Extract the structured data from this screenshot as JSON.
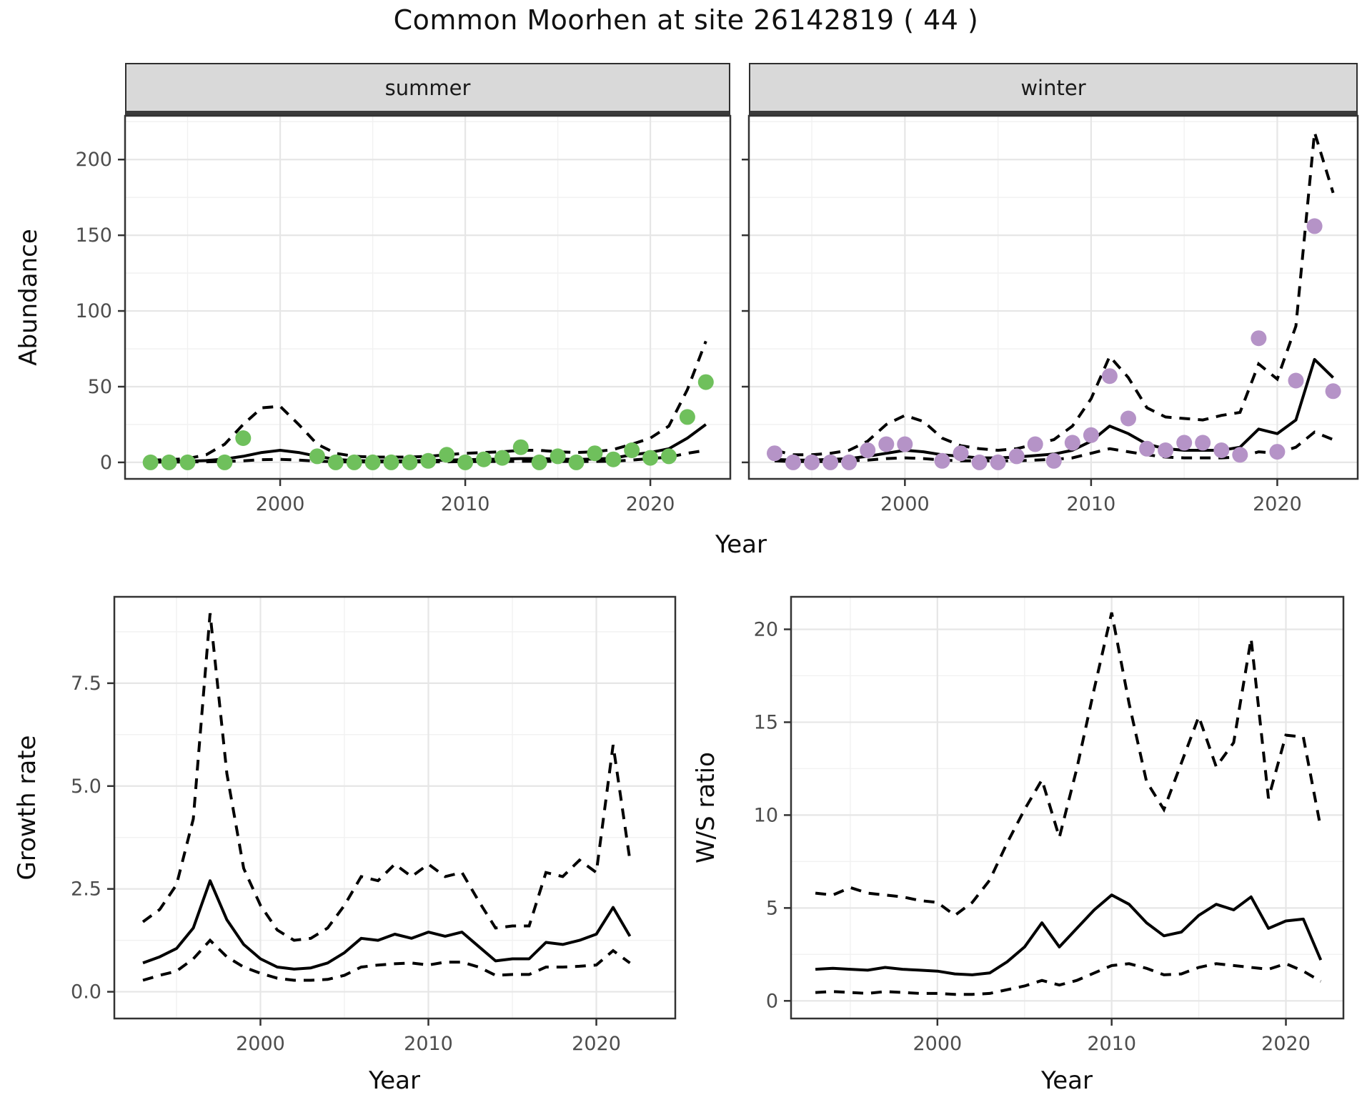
{
  "title": "Common Moorhen at site 26142819 ( 44 )",
  "axis_titles": {
    "abundance": "Abundance",
    "year_top": "Year",
    "growth": "Growth rate",
    "ws": "W/S ratio",
    "year_growth": "Year",
    "year_ws": "Year"
  },
  "colors": {
    "summer_point": "#6fc05c",
    "winter_point": "#b593c7",
    "fit_line": "#000000",
    "ci_line": "#000000",
    "strip_bg": "#d9d9d9",
    "grid_major": "#e6e6e6",
    "grid_minor": "#f1f1f1",
    "panel_border": "#333333",
    "tick_text": "#4d4d4d"
  },
  "chart_data": [
    {
      "id": "abundance-summer",
      "type": "scatter",
      "facet_label": "summer",
      "title": "Common Moorhen abundance, summer",
      "xlabel": "Year",
      "ylabel": "Abundance",
      "xlim": [
        1991.62,
        2024.32
      ],
      "ylim": [
        -10.9,
        228.9
      ],
      "x_ticks": [
        2000,
        2010,
        2020
      ],
      "x_tick_labels": [
        "2000",
        "2010",
        "2020"
      ],
      "x_minor": [
        1995,
        2005,
        2015
      ],
      "y_ticks": [
        0,
        50,
        100,
        150,
        200
      ],
      "y_tick_labels": [
        "0",
        "50",
        "100",
        "150",
        "200"
      ],
      "y_minor": [
        25,
        75,
        125,
        175,
        225
      ],
      "point_color": "#6fc05c",
      "points": {
        "years": [
          1993,
          1994,
          1995,
          1997,
          1998,
          2002,
          2003,
          2004,
          2005,
          2006,
          2007,
          2008,
          2009,
          2010,
          2011,
          2012,
          2013,
          2014,
          2015,
          2016,
          2017,
          2018,
          2019,
          2020,
          2021,
          2022,
          2023
        ],
        "values": [
          0,
          0,
          0,
          0,
          16,
          4,
          0,
          0,
          0,
          0,
          0,
          1,
          5,
          0,
          2,
          3,
          10,
          0,
          4,
          0,
          6,
          2,
          8,
          3,
          4,
          30,
          53
        ]
      },
      "fit": {
        "years": [
          1993,
          1994,
          1995,
          1996,
          1997,
          1998,
          1999,
          2000,
          2001,
          2002,
          2003,
          2004,
          2005,
          2006,
          2007,
          2008,
          2009,
          2010,
          2011,
          2012,
          2013,
          2014,
          2015,
          2016,
          2017,
          2018,
          2019,
          2020,
          2021,
          2022,
          2023
        ],
        "values": [
          0.5,
          0.6,
          0.8,
          1.2,
          2.2,
          4,
          6.5,
          8,
          6.5,
          4,
          2,
          1.2,
          1,
          1,
          1,
          1.2,
          1.5,
          1.8,
          2,
          2.2,
          2.5,
          2.5,
          2.2,
          2,
          2.2,
          2.8,
          5,
          6.5,
          9,
          16,
          25
        ]
      },
      "upper": {
        "years": [
          1993,
          1994,
          1995,
          1996,
          1997,
          1998,
          1999,
          2000,
          2001,
          2002,
          2003,
          2004,
          2005,
          2006,
          2007,
          2008,
          2009,
          2010,
          2011,
          2012,
          2013,
          2014,
          2015,
          2016,
          2017,
          2018,
          2019,
          2020,
          2021,
          2022,
          2023
        ],
        "values": [
          1.5,
          1.8,
          2.5,
          5,
          12,
          25,
          36,
          37,
          25,
          12,
          6,
          4,
          3.5,
          3.5,
          3.5,
          4,
          5,
          6,
          6.5,
          7,
          8,
          8,
          7,
          6.5,
          7,
          8.5,
          12,
          16,
          24,
          48,
          80
        ]
      },
      "lower": {
        "years": [
          1993,
          1994,
          1995,
          1996,
          1997,
          1998,
          1999,
          2000,
          2001,
          2002,
          2003,
          2004,
          2005,
          2006,
          2007,
          2008,
          2009,
          2010,
          2011,
          2012,
          2013,
          2014,
          2015,
          2016,
          2017,
          2018,
          2019,
          2020,
          2021,
          2022,
          2023
        ],
        "values": [
          0.2,
          0.2,
          0.3,
          0.4,
          0.6,
          1,
          1.8,
          2,
          1.5,
          0.8,
          0.4,
          0.3,
          0.3,
          0.3,
          0.3,
          0.35,
          0.4,
          0.5,
          0.55,
          0.6,
          0.7,
          0.7,
          0.6,
          0.55,
          0.6,
          0.8,
          1.5,
          2.5,
          3.5,
          6,
          8
        ]
      }
    },
    {
      "id": "abundance-winter",
      "type": "scatter",
      "facet_label": "winter",
      "title": "Common Moorhen abundance, winter",
      "xlabel": "Year",
      "ylabel": "Abundance",
      "xlim": [
        1991.62,
        2024.32
      ],
      "ylim": [
        -10.9,
        228.9
      ],
      "x_ticks": [
        2000,
        2010,
        2020
      ],
      "x_tick_labels": [
        "2000",
        "2010",
        "2020"
      ],
      "x_minor": [
        1995,
        2005,
        2015
      ],
      "y_ticks": [
        0,
        50,
        100,
        150,
        200
      ],
      "y_tick_labels": [
        "0",
        "50",
        "100",
        "150",
        "200"
      ],
      "y_minor": [
        25,
        75,
        125,
        175,
        225
      ],
      "point_color": "#b593c7",
      "points": {
        "years": [
          1993,
          1994,
          1995,
          1996,
          1997,
          1998,
          1999,
          2000,
          2002,
          2003,
          2004,
          2005,
          2006,
          2007,
          2008,
          2009,
          2010,
          2011,
          2012,
          2013,
          2014,
          2015,
          2016,
          2017,
          2018,
          2019,
          2020,
          2021,
          2022,
          2023
        ],
        "values": [
          6,
          0,
          0,
          0,
          0,
          8,
          12,
          12,
          1,
          6,
          0,
          0,
          4,
          12,
          1,
          13,
          18,
          57,
          29,
          9,
          8,
          13,
          13,
          8,
          5,
          82,
          7,
          54,
          156,
          47
        ]
      },
      "fit": {
        "years": [
          1993,
          1994,
          1995,
          1996,
          1997,
          1998,
          1999,
          2000,
          2001,
          2002,
          2003,
          2004,
          2005,
          2006,
          2007,
          2008,
          2009,
          2010,
          2011,
          2012,
          2013,
          2014,
          2015,
          2016,
          2017,
          2018,
          2019,
          2020,
          2021,
          2022,
          2023
        ],
        "values": [
          2,
          1.5,
          1.5,
          2,
          2.5,
          4,
          6,
          8,
          7,
          5,
          4,
          3,
          3,
          3.5,
          4.5,
          5.5,
          8,
          14,
          24,
          19,
          12,
          9,
          8,
          8,
          8,
          10,
          22,
          19,
          28,
          68,
          56
        ]
      },
      "upper": {
        "years": [
          1993,
          1994,
          1995,
          1996,
          1997,
          1998,
          1999,
          2000,
          2001,
          2002,
          2003,
          2004,
          2005,
          2006,
          2007,
          2008,
          2009,
          2010,
          2011,
          2012,
          2013,
          2014,
          2015,
          2016,
          2017,
          2018,
          2019,
          2020,
          2021,
          2022,
          2023
        ],
        "values": [
          8,
          5,
          5,
          6,
          8,
          14,
          25,
          31,
          27,
          16,
          11,
          9,
          8,
          9,
          12,
          15,
          24,
          42,
          70,
          56,
          36,
          30,
          29,
          28,
          31,
          33,
          65,
          55,
          90,
          218,
          178
        ]
      },
      "lower": {
        "years": [
          1993,
          1994,
          1995,
          1996,
          1997,
          1998,
          1999,
          2000,
          2001,
          2002,
          2003,
          2004,
          2005,
          2006,
          2007,
          2008,
          2009,
          2010,
          2011,
          2012,
          2013,
          2014,
          2015,
          2016,
          2017,
          2018,
          2019,
          2020,
          2021,
          2022,
          2023
        ],
        "values": [
          1,
          0.5,
          0.5,
          0.5,
          1,
          1.5,
          2.5,
          3,
          2.5,
          1.5,
          1,
          1,
          1,
          1,
          1.5,
          2,
          3,
          6,
          9,
          7,
          5,
          3.5,
          3,
          3,
          3,
          3.5,
          7,
          6,
          10,
          20,
          15
        ]
      }
    },
    {
      "id": "growth-rate",
      "type": "line",
      "facet_label": "",
      "title": "Growth rate",
      "xlabel": "Year",
      "ylabel": "Growth rate",
      "xlim": [
        1991.3,
        2024.7
      ],
      "ylim": [
        -0.65,
        9.6
      ],
      "x_ticks": [
        2000,
        2010,
        2020
      ],
      "x_tick_labels": [
        "2000",
        "2010",
        "2020"
      ],
      "x_minor": [
        1995,
        2005,
        2015
      ],
      "y_ticks": [
        0,
        2.5,
        5,
        7.5
      ],
      "y_tick_labels": [
        "0.0",
        "2.5",
        "5.0",
        "7.5"
      ],
      "y_minor": [
        1.25,
        3.75,
        6.25,
        8.75
      ],
      "point_color": "",
      "points": {
        "years": [],
        "values": []
      },
      "fit": {
        "years": [
          1993,
          1994,
          1995,
          1996,
          1997,
          1998,
          1999,
          2000,
          2001,
          2002,
          2003,
          2004,
          2005,
          2006,
          2007,
          2008,
          2009,
          2010,
          2011,
          2012,
          2013,
          2014,
          2015,
          2016,
          2017,
          2018,
          2019,
          2020,
          2021,
          2022
        ],
        "values": [
          0.7,
          0.85,
          1.05,
          1.55,
          2.7,
          1.75,
          1.15,
          0.8,
          0.6,
          0.55,
          0.58,
          0.7,
          0.95,
          1.3,
          1.25,
          1.4,
          1.3,
          1.45,
          1.35,
          1.45,
          1.1,
          0.75,
          0.8,
          0.8,
          1.2,
          1.15,
          1.25,
          1.4,
          2.05,
          1.35
        ]
      },
      "upper": {
        "years": [
          1993,
          1994,
          1995,
          1996,
          1997,
          1998,
          1999,
          2000,
          2001,
          2002,
          2003,
          2004,
          2005,
          2006,
          2007,
          2008,
          2009,
          2010,
          2011,
          2012,
          2013,
          2014,
          2015,
          2016,
          2017,
          2018,
          2019,
          2020,
          2021,
          2022
        ],
        "values": [
          1.7,
          2.0,
          2.6,
          4.2,
          9.2,
          5.3,
          3.0,
          2.1,
          1.5,
          1.25,
          1.3,
          1.55,
          2.1,
          2.8,
          2.7,
          3.1,
          2.8,
          3.1,
          2.8,
          2.9,
          2.2,
          1.55,
          1.6,
          1.6,
          2.9,
          2.8,
          3.2,
          2.9,
          6.0,
          3.2
        ]
      },
      "lower": {
        "years": [
          1993,
          1994,
          1995,
          1996,
          1997,
          1998,
          1999,
          2000,
          2001,
          2002,
          2003,
          2004,
          2005,
          2006,
          2007,
          2008,
          2009,
          2010,
          2011,
          2012,
          2013,
          2014,
          2015,
          2016,
          2017,
          2018,
          2019,
          2020,
          2021,
          2022
        ],
        "values": [
          0.28,
          0.4,
          0.5,
          0.8,
          1.25,
          0.85,
          0.6,
          0.45,
          0.33,
          0.28,
          0.28,
          0.3,
          0.4,
          0.6,
          0.65,
          0.68,
          0.7,
          0.65,
          0.72,
          0.72,
          0.6,
          0.4,
          0.42,
          0.42,
          0.6,
          0.6,
          0.62,
          0.65,
          1.0,
          0.7
        ]
      }
    },
    {
      "id": "ws-ratio",
      "type": "line",
      "facet_label": "",
      "title": "Winter/Summer ratio",
      "xlabel": "Year",
      "ylabel": "W/S ratio",
      "xlim": [
        1991.6,
        2023.3
      ],
      "ylim": [
        -0.95,
        21.75
      ],
      "x_ticks": [
        2000,
        2010,
        2020
      ],
      "x_tick_labels": [
        "2000",
        "2010",
        "2020"
      ],
      "x_minor": [
        1995,
        2005,
        2015
      ],
      "y_ticks": [
        0,
        5,
        10,
        15,
        20
      ],
      "y_tick_labels": [
        "0",
        "5",
        "10",
        "15",
        "20"
      ],
      "y_minor": [
        2.5,
        7.5,
        12.5,
        17.5
      ],
      "point_color": "",
      "points": {
        "years": [],
        "values": []
      },
      "fit": {
        "years": [
          1993,
          1994,
          1995,
          1996,
          1997,
          1998,
          1999,
          2000,
          2001,
          2002,
          2003,
          2004,
          2005,
          2006,
          2007,
          2008,
          2009,
          2010,
          2011,
          2012,
          2013,
          2014,
          2015,
          2016,
          2017,
          2018,
          2019,
          2020,
          2021,
          2022
        ],
        "values": [
          1.7,
          1.75,
          1.7,
          1.65,
          1.8,
          1.7,
          1.65,
          1.6,
          1.45,
          1.4,
          1.5,
          2.1,
          2.9,
          4.2,
          2.9,
          3.9,
          4.9,
          5.7,
          5.2,
          4.2,
          3.5,
          3.7,
          4.6,
          5.2,
          4.9,
          5.6,
          3.9,
          4.3,
          4.4,
          2.2
        ]
      },
      "upper": {
        "years": [
          1993,
          1994,
          1995,
          1996,
          1997,
          1998,
          1999,
          2000,
          2001,
          2002,
          2003,
          2004,
          2005,
          2006,
          2007,
          2008,
          2009,
          2010,
          2011,
          2012,
          2013,
          2014,
          2015,
          2016,
          2017,
          2018,
          2019,
          2020,
          2021,
          2022
        ],
        "values": [
          5.8,
          5.7,
          6.1,
          5.8,
          5.7,
          5.6,
          5.4,
          5.3,
          4.6,
          5.3,
          6.5,
          8.5,
          10.3,
          11.9,
          8.8,
          12.5,
          16.8,
          20.9,
          16.0,
          11.8,
          10.3,
          12.8,
          15.3,
          12.6,
          13.9,
          19.5,
          10.9,
          14.3,
          14.2,
          9.3
        ]
      },
      "lower": {
        "years": [
          1993,
          1994,
          1995,
          1996,
          1997,
          1998,
          1999,
          2000,
          2001,
          2002,
          2003,
          2004,
          2005,
          2006,
          2007,
          2008,
          2009,
          2010,
          2011,
          2012,
          2013,
          2014,
          2015,
          2016,
          2017,
          2018,
          2019,
          2020,
          2021,
          2022
        ],
        "values": [
          0.45,
          0.5,
          0.45,
          0.4,
          0.5,
          0.45,
          0.4,
          0.4,
          0.35,
          0.35,
          0.4,
          0.6,
          0.8,
          1.1,
          0.85,
          1.1,
          1.5,
          1.9,
          2.0,
          1.75,
          1.4,
          1.45,
          1.8,
          2.0,
          1.9,
          1.8,
          1.7,
          2.0,
          1.6,
          1.05
        ]
      }
    }
  ]
}
